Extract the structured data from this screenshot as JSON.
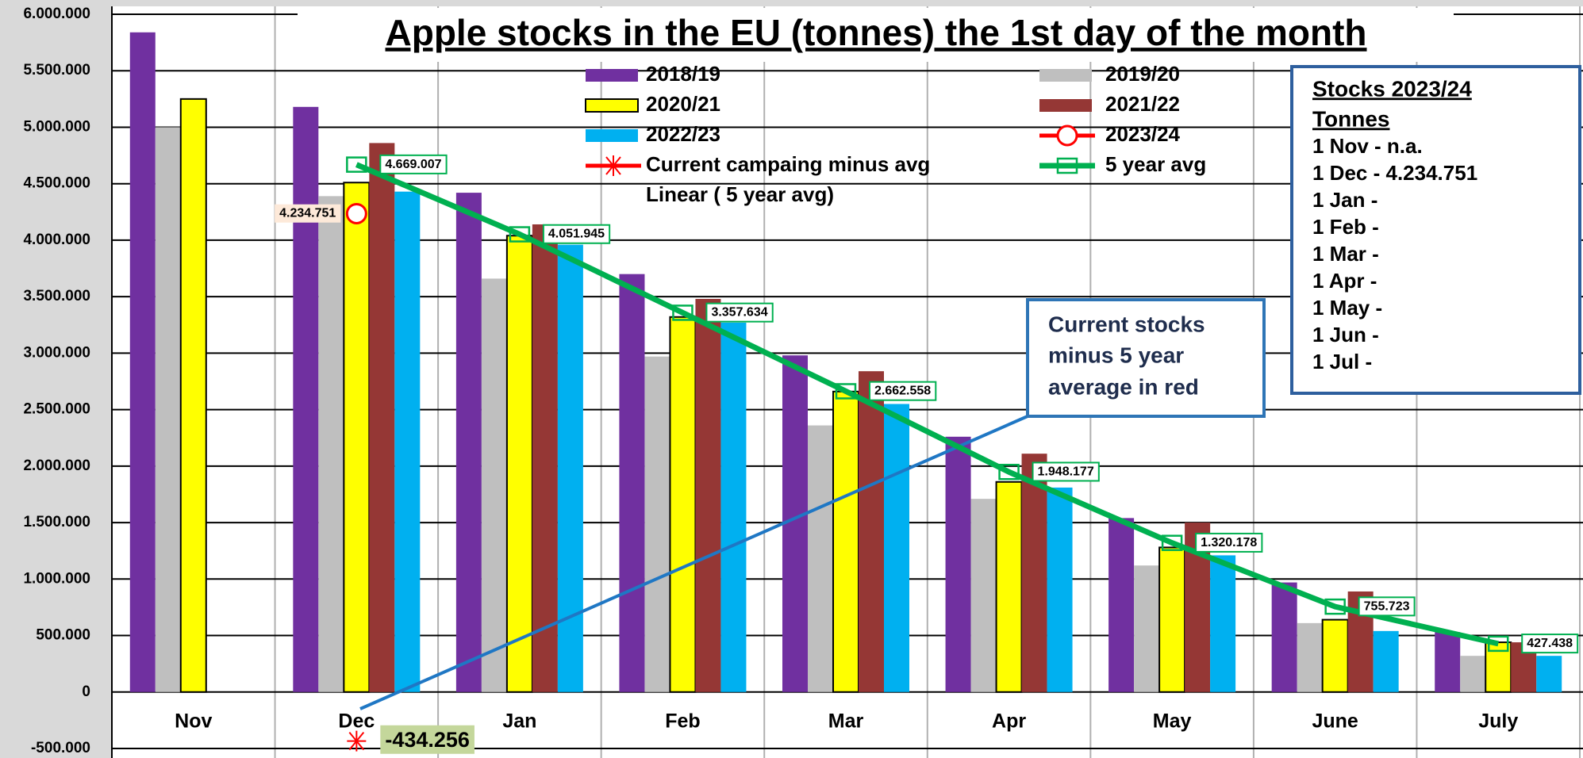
{
  "chart_data": {
    "type": "bar",
    "title": "Apple stocks in the EU (tonnes) the 1st day of the month",
    "categories": [
      "Nov",
      "Dec",
      "Jan",
      "Feb",
      "Mar",
      "Apr",
      "May",
      "June",
      "July"
    ],
    "ylim": [
      -500000,
      6000000
    ],
    "yticks": [
      {
        "value": -500000,
        "label": "-500.000"
      },
      0,
      {
        "value": 500000,
        "label": "500.000"
      },
      {
        "value": 1000000,
        "label": "1.000.000"
      },
      {
        "value": 1500000,
        "label": "1.500.000"
      },
      {
        "value": 2000000,
        "label": "2.000.000"
      },
      {
        "value": 2500000,
        "label": "2.500.000"
      },
      {
        "value": 3000000,
        "label": "3.000.000"
      },
      {
        "value": 3500000,
        "label": "3.500.000"
      },
      {
        "value": 4000000,
        "label": "4.000.000"
      },
      {
        "value": 4500000,
        "label": "4.500.000"
      },
      {
        "value": 5000000,
        "label": "5.000.000"
      },
      {
        "value": 5500000,
        "label": "5.500.000"
      },
      {
        "value": 6000000,
        "label": "6.000.000"
      }
    ],
    "grid": true,
    "series": [
      {
        "name": "2018/19",
        "type": "bar",
        "color": "#7030a0",
        "values": [
          5840000,
          5180000,
          4420000,
          3700000,
          2980000,
          2260000,
          1540000,
          970000,
          530000
        ]
      },
      {
        "name": "2019/20",
        "type": "bar",
        "color": "#bfbfbf",
        "values": [
          5000000,
          4390000,
          3660000,
          2970000,
          2360000,
          1710000,
          1120000,
          610000,
          320000
        ]
      },
      {
        "name": "2020/21",
        "type": "bar",
        "color": "#ffff00",
        "edge": "#000000",
        "values": [
          5250000,
          4510000,
          4040000,
          3320000,
          2660000,
          1860000,
          1280000,
          640000,
          440000
        ]
      },
      {
        "name": "2021/22",
        "type": "bar",
        "color": "#953735",
        "values": [
          null,
          4860000,
          4140000,
          3480000,
          2840000,
          2110000,
          1500000,
          890000,
          440000
        ]
      },
      {
        "name": "2022/23",
        "type": "bar",
        "color": "#00b0f0",
        "values": [
          null,
          4430000,
          3960000,
          3270000,
          2550000,
          1810000,
          1210000,
          540000,
          320000
        ]
      },
      {
        "name": "2023/24",
        "type": "line",
        "marker": "circle",
        "color": "#ff0000",
        "values": [
          null,
          4234751,
          null,
          null,
          null,
          null,
          null,
          null,
          null
        ],
        "value_labels": [
          null,
          "4.234.751",
          null,
          null,
          null,
          null,
          null,
          null,
          null
        ]
      },
      {
        "name": "Current campaing minus avg",
        "type": "line",
        "marker": "asterisk",
        "color": "#ff0000",
        "values": [
          null,
          -434256,
          null,
          null,
          null,
          null,
          null,
          null,
          null
        ],
        "value_labels": [
          null,
          "-434.256",
          null,
          null,
          null,
          null,
          null,
          null,
          null
        ]
      },
      {
        "name": "5 year avg",
        "type": "line",
        "marker": "square",
        "color": "#00b050",
        "values": [
          null,
          4669007,
          4051945,
          3357634,
          2662558,
          1948177,
          1320178,
          755723,
          427438
        ],
        "value_labels": [
          null,
          "4.669.007",
          "4.051.945",
          "3.357.634",
          "2.662.558",
          "1.948.177",
          "1.320.178",
          "755.723",
          "427.438"
        ]
      },
      {
        "name": "Linear ( 5 year avg)",
        "type": "trendline"
      }
    ],
    "note": [
      "Current stocks",
      "minus 5 year",
      "average in red"
    ],
    "stocks_box": {
      "title": "Stocks 2023/24",
      "unit": "Tonnes",
      "lines": [
        "1 Nov - n.a.",
        "1 Dec - 4.234.751",
        "1 Jan -",
        "1 Feb -",
        "1 Mar -",
        "1 Apr -",
        "1 May -",
        "1 Jun -",
        "1 Jul  -"
      ]
    }
  }
}
